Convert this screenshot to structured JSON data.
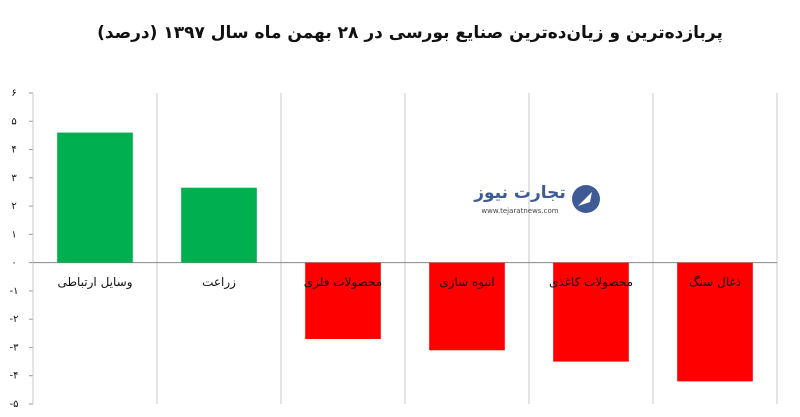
{
  "chart_data": {
    "type": "bar",
    "title": "پربازده‌ترین و زیان‌ده‌ترین صنایع بورسی در ۲۸ بهمن ماه سال ۱۳۹۷ (درصد)",
    "categories": [
      "وسایل ارتباطی",
      "زراعت",
      "محصولات فلزی",
      "انبوه سازی",
      "محصولات کاغذی",
      "ذغال سنگ"
    ],
    "values": [
      4.6,
      2.65,
      -2.7,
      -3.1,
      -3.5,
      -4.2
    ],
    "colors": [
      "#00b050",
      "#00b050",
      "#ff0000",
      "#ff0000",
      "#ff0000",
      "#ff0000"
    ],
    "ylim": [
      -5,
      6
    ],
    "yticks": [
      {
        "value": 6,
        "label": "۶"
      },
      {
        "value": 5,
        "label": "۵"
      },
      {
        "value": 4,
        "label": "۴"
      },
      {
        "value": 3,
        "label": "۳"
      },
      {
        "value": 2,
        "label": "۲"
      },
      {
        "value": 1,
        "label": "۱"
      },
      {
        "value": 0,
        "label": "۰"
      },
      {
        "value": -1,
        "label": "-۱"
      },
      {
        "value": -2,
        "label": "-۲"
      },
      {
        "value": -3,
        "label": "-۳"
      },
      {
        "value": -4,
        "label": "-۴"
      },
      {
        "value": -5,
        "label": "-۵"
      }
    ],
    "watermark": {
      "name": "تجارت نیوز",
      "url": "www.tejaratnews.com"
    }
  }
}
